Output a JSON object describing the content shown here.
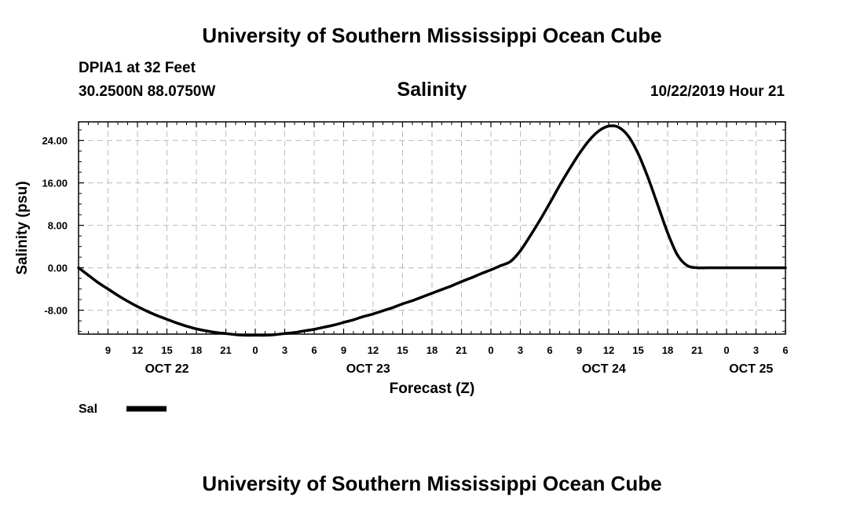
{
  "header": {
    "title": "University of Southern Mississippi Ocean Cube",
    "station": "DPIA1 at 32 Feet",
    "coords": "30.2500N 88.0750W",
    "timestamp": "10/22/2019 Hour 21"
  },
  "footer": {
    "title": "University of Southern Mississippi Ocean Cube"
  },
  "chart_data": {
    "type": "line",
    "title": "Salinity",
    "xlabel": "Forecast (Z)",
    "ylabel": "Salinity (psu)",
    "x_unit": "hours since OCT 22 06Z",
    "xlim": [
      0,
      72
    ],
    "ylim": [
      -12.5,
      27.5
    ],
    "grid": true,
    "legend_position": "bottom-left",
    "line_color": "#000000",
    "y_ticks": [
      {
        "value": -8,
        "label": "-8.00"
      },
      {
        "value": 0,
        "label": "0.00"
      },
      {
        "value": 8,
        "label": "8.00"
      },
      {
        "value": 16,
        "label": "16.00"
      },
      {
        "value": 24,
        "label": "24.00"
      }
    ],
    "x_ticks": [
      {
        "value": 3,
        "label": "9"
      },
      {
        "value": 6,
        "label": "12"
      },
      {
        "value": 9,
        "label": "15"
      },
      {
        "value": 12,
        "label": "18"
      },
      {
        "value": 15,
        "label": "21"
      },
      {
        "value": 18,
        "label": "0"
      },
      {
        "value": 21,
        "label": "3"
      },
      {
        "value": 24,
        "label": "6"
      },
      {
        "value": 27,
        "label": "9"
      },
      {
        "value": 30,
        "label": "12"
      },
      {
        "value": 33,
        "label": "15"
      },
      {
        "value": 36,
        "label": "18"
      },
      {
        "value": 39,
        "label": "21"
      },
      {
        "value": 42,
        "label": "0"
      },
      {
        "value": 45,
        "label": "3"
      },
      {
        "value": 48,
        "label": "6"
      },
      {
        "value": 51,
        "label": "9"
      },
      {
        "value": 54,
        "label": "12"
      },
      {
        "value": 57,
        "label": "15"
      },
      {
        "value": 60,
        "label": "18"
      },
      {
        "value": 63,
        "label": "21"
      },
      {
        "value": 66,
        "label": "0"
      },
      {
        "value": 69,
        "label": "3"
      },
      {
        "value": 72,
        "label": "6"
      }
    ],
    "date_labels": [
      {
        "value": 9,
        "label": "OCT 22"
      },
      {
        "value": 29.5,
        "label": "OCT 23"
      },
      {
        "value": 53.5,
        "label": "OCT 24"
      },
      {
        "value": 68.5,
        "label": "OCT 25"
      }
    ],
    "series": [
      {
        "name": "Sal",
        "x": [
          0,
          1,
          2,
          3,
          4,
          5,
          6,
          7,
          8,
          9,
          10,
          11,
          12,
          13,
          14,
          15,
          16,
          17,
          18,
          19,
          20,
          21,
          22,
          23,
          24,
          25,
          26,
          27,
          28,
          29,
          30,
          31,
          32,
          33,
          34,
          35,
          36,
          37,
          38,
          39,
          40,
          41,
          42,
          43,
          44,
          45,
          46,
          47,
          48,
          49,
          50,
          51,
          52,
          53,
          54,
          55,
          56,
          57,
          58,
          59,
          60,
          61,
          62,
          63,
          64,
          65,
          66,
          67,
          68,
          69,
          70,
          71,
          72
        ],
        "values": [
          0.0,
          -1.4,
          -2.8,
          -4.0,
          -5.2,
          -6.3,
          -7.3,
          -8.2,
          -9.0,
          -9.7,
          -10.4,
          -11.0,
          -11.5,
          -11.9,
          -12.2,
          -12.4,
          -12.6,
          -12.7,
          -12.7,
          -12.7,
          -12.6,
          -12.4,
          -12.2,
          -11.9,
          -11.6,
          -11.2,
          -10.8,
          -10.3,
          -9.8,
          -9.2,
          -8.7,
          -8.1,
          -7.5,
          -6.8,
          -6.2,
          -5.5,
          -4.8,
          -4.1,
          -3.4,
          -2.6,
          -1.9,
          -1.1,
          -0.4,
          0.4,
          1.2,
          3.2,
          6.0,
          9.0,
          12.2,
          15.5,
          18.6,
          21.5,
          24.0,
          25.8,
          26.7,
          26.5,
          24.8,
          21.5,
          17.0,
          11.8,
          6.6,
          2.4,
          0.4,
          0.0,
          0.0,
          0.0,
          0.0,
          0.0,
          0.0,
          0.0,
          0.0,
          0.0,
          0.0
        ]
      }
    ]
  }
}
